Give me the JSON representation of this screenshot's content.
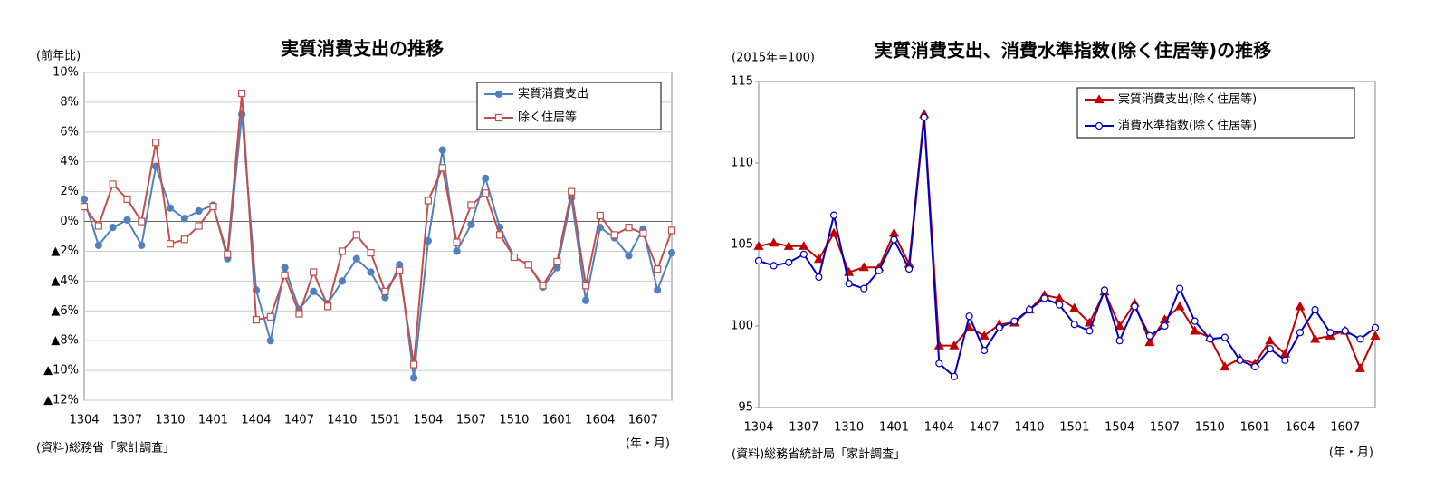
{
  "chart_data": [
    {
      "type": "line",
      "title": "実質消費支出の推移",
      "unit_label": "(前年比)",
      "source": "(資料)総務省「家計調査」",
      "x_unit": "(年・月)",
      "categories": [
        "1304",
        null,
        null,
        "1307",
        null,
        null,
        "1310",
        null,
        null,
        "1401",
        null,
        null,
        "1404",
        null,
        null,
        "1407",
        null,
        null,
        "1410",
        null,
        null,
        "1501",
        null,
        null,
        "1504",
        null,
        null,
        "1507",
        null,
        null,
        "1510",
        null,
        null,
        "1601",
        null,
        null,
        "1604",
        null,
        null,
        "1607",
        null,
        null
      ],
      "ylim": [
        -12,
        10
      ],
      "yticks": [
        {
          "value": -12,
          "label": "▲12%"
        },
        {
          "value": -10,
          "label": "▲10%"
        },
        {
          "value": -8,
          "label": "▲8%"
        },
        {
          "value": -6,
          "label": "▲6%"
        },
        {
          "value": -4,
          "label": "▲4%"
        },
        {
          "value": -2,
          "label": "▲2%"
        },
        {
          "value": 0,
          "label": "0%"
        },
        {
          "value": 2,
          "label": "2%"
        },
        {
          "value": 4,
          "label": "4%"
        },
        {
          "value": 6,
          "label": "6%"
        },
        {
          "value": 8,
          "label": "8%"
        },
        {
          "value": 10,
          "label": "10%"
        }
      ],
      "grid": true,
      "legend": "top-right",
      "series": [
        {
          "name": "実質消費支出",
          "color": "#4f81bd",
          "marker": "circle",
          "marker_fill": "#4f81bd",
          "values": [
            1.5,
            -1.6,
            -0.4,
            0.1,
            -1.6,
            3.7,
            0.9,
            0.2,
            0.7,
            1.1,
            -2.5,
            7.2,
            -4.6,
            -8.0,
            -3.1,
            -5.9,
            -4.7,
            -5.5,
            -4.0,
            -2.5,
            -3.4,
            -5.1,
            -2.9,
            -10.5,
            -1.3,
            4.8,
            -2.0,
            -0.2,
            2.9,
            -0.4,
            -2.4,
            -2.9,
            -4.4,
            -3.1,
            1.6,
            -5.3,
            -0.4,
            -1.1,
            -2.3,
            -0.5,
            -4.6,
            -2.1
          ]
        },
        {
          "name": "除く住居等",
          "color": "#c0504d",
          "marker": "square",
          "marker_fill": "#ffffff",
          "values": [
            1.0,
            -0.3,
            2.5,
            1.5,
            0.0,
            5.3,
            -1.5,
            -1.2,
            -0.3,
            1.0,
            -2.2,
            8.6,
            -6.6,
            -6.4,
            -3.6,
            -6.2,
            -3.4,
            -5.7,
            -2.0,
            -0.9,
            -2.1,
            -4.7,
            -3.3,
            -9.6,
            1.4,
            3.6,
            -1.4,
            1.1,
            1.9,
            -0.9,
            -2.4,
            -2.9,
            -4.3,
            -2.7,
            2.0,
            -4.3,
            0.4,
            -0.9,
            -0.4,
            -0.8,
            -3.2,
            -0.6
          ]
        }
      ]
    },
    {
      "type": "line",
      "title": "実質消費支出、消費水準指数(除く住居等)の推移",
      "unit_label": "(2015年=100)",
      "source": "(資料)総務省統計局「家計調査」",
      "x_unit": "(年・月)",
      "categories": [
        "1304",
        null,
        null,
        "1307",
        null,
        null,
        "1310",
        null,
        null,
        "1401",
        null,
        null,
        "1404",
        null,
        null,
        "1407",
        null,
        null,
        "1410",
        null,
        null,
        "1501",
        null,
        null,
        "1504",
        null,
        null,
        "1507",
        null,
        null,
        "1510",
        null,
        null,
        "1601",
        null,
        null,
        "1604",
        null,
        null,
        "1607",
        null,
        null
      ],
      "ylim": [
        95,
        115
      ],
      "yticks": [
        95,
        100,
        105,
        110,
        115
      ],
      "grid": false,
      "legend": "top-right",
      "series": [
        {
          "name": "実質消費支出(除く住居等)",
          "color": "#c00000",
          "marker": "triangle",
          "marker_fill": "#c00000",
          "values": [
            104.9,
            105.1,
            104.9,
            104.9,
            104.1,
            105.7,
            103.3,
            103.6,
            103.6,
            105.7,
            103.8,
            113.0,
            98.8,
            98.8,
            99.9,
            99.4,
            100.1,
            100.2,
            101.0,
            101.9,
            101.7,
            101.1,
            100.2,
            102.1,
            100.0,
            101.4,
            99.0,
            100.4,
            101.2,
            99.7,
            99.3,
            97.5,
            98.0,
            97.7,
            99.1,
            98.3,
            101.2,
            99.2,
            99.4,
            99.7,
            97.4,
            99.4
          ]
        },
        {
          "name": "消費水準指数(除く住居等)",
          "color": "#0000c0",
          "marker": "circle",
          "marker_fill": "#ffffff",
          "values": [
            104.0,
            103.7,
            103.9,
            104.4,
            103.0,
            106.8,
            102.6,
            102.3,
            103.4,
            105.3,
            103.5,
            112.8,
            97.7,
            96.9,
            100.6,
            98.5,
            99.9,
            100.3,
            101.0,
            101.7,
            101.3,
            100.1,
            99.7,
            102.2,
            99.1,
            101.2,
            99.4,
            100.0,
            102.3,
            100.3,
            99.2,
            99.3,
            97.9,
            97.5,
            98.6,
            97.9,
            99.6,
            101.0,
            99.6,
            99.7,
            99.2,
            99.9
          ]
        }
      ]
    }
  ]
}
